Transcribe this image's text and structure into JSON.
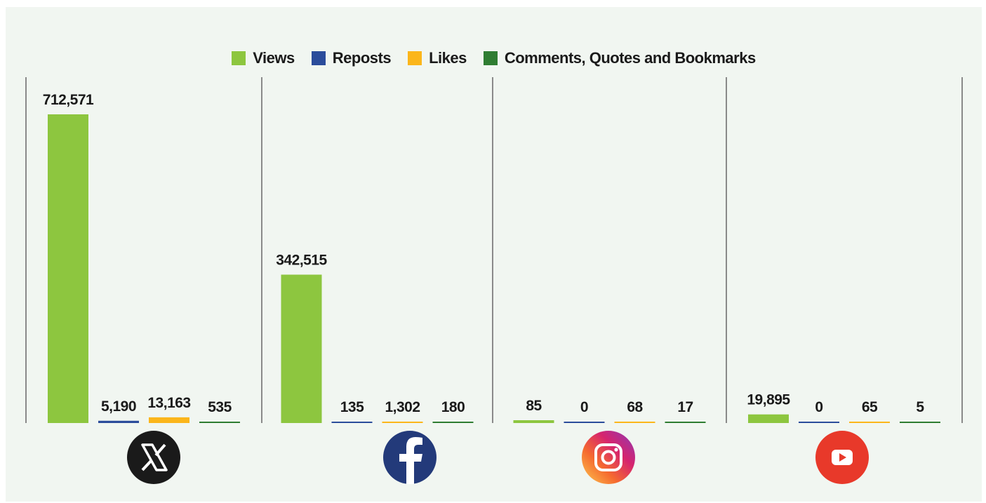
{
  "chart_data": {
    "type": "bar",
    "categories": [
      "X",
      "Facebook",
      "Instagram",
      "YouTube"
    ],
    "series": [
      {
        "name": "Views",
        "color": "#8dc63f",
        "values": [
          712571,
          342515,
          85,
          19895
        ],
        "labels": [
          "712,571",
          "342,515",
          "85",
          "19,895"
        ]
      },
      {
        "name": "Reposts",
        "color": "#2b4c9b",
        "values": [
          5190,
          135,
          0,
          0
        ],
        "labels": [
          "5,190",
          "135",
          "0",
          "0"
        ]
      },
      {
        "name": "Likes",
        "color": "#fbb61b",
        "values": [
          13163,
          1302,
          68,
          65
        ],
        "labels": [
          "13,163",
          "1,302",
          "68",
          "65"
        ]
      },
      {
        "name": "Comments, Quotes and Bookmarks",
        "color": "#2f7d32",
        "values": [
          535,
          180,
          17,
          5
        ],
        "labels": [
          "535",
          "180",
          "17",
          "5"
        ]
      }
    ],
    "category_icons": [
      "x-logo-icon",
      "facebook-logo-icon",
      "instagram-logo-icon",
      "youtube-logo-icon"
    ],
    "legend_position": "top-center",
    "grid": false
  }
}
